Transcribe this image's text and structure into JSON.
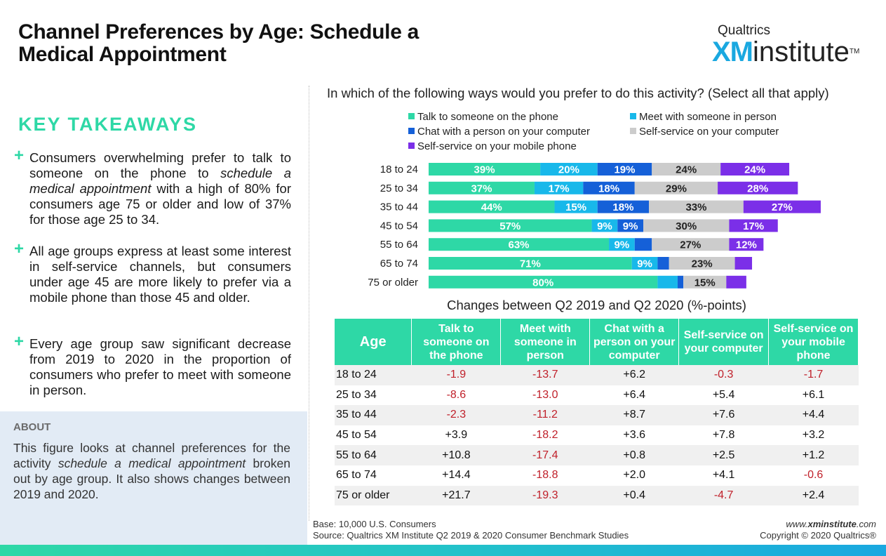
{
  "header": {
    "title": "Channel Preferences by Age: Schedule a Medical Appointment",
    "logo_top": "Qualtrics",
    "logo_xm": "XM",
    "logo_rest": "institute",
    "logo_tm": "TM"
  },
  "key_takeaways": {
    "title": "KEY TAKEAWAYS",
    "items": [
      {
        "before": "Consumers overwhelming prefer to talk to someone on the phone to ",
        "em": "schedule a medical appointment",
        "after": "  with a high of 80% for consumers age 75 or older and low of 37% for those age 25 to 34."
      },
      {
        "before": "All age groups express at least some interest in self-service channels, but consumers under age 45 are more likely to prefer via a mobile phone than those 45 and older.",
        "em": "",
        "after": ""
      },
      {
        "before": "Every age group saw significant decrease from 2019 to 2020 in the proportion of consumers who prefer to meet with someone in person.",
        "em": "",
        "after": ""
      }
    ]
  },
  "about": {
    "label": "ABOUT",
    "before": "This figure looks at channel preferences for the activity ",
    "em": "schedule a medical appointment",
    "after": " broken out by age group. It also shows changes between 2019 and 2020."
  },
  "chart_data": {
    "type": "bar",
    "orientation": "horizontal",
    "stacked": true,
    "title": "In which of the following ways would you prefer to do this activity? (Select all that apply)",
    "categories": [
      "18 to 24",
      "25 to 34",
      "35 to 44",
      "45 to 54",
      "55 to 64",
      "65 to 74",
      "75 or older"
    ],
    "series": [
      {
        "name": "Talk to someone on the phone",
        "color": "#2ed8a6",
        "values": [
          39,
          37,
          44,
          57,
          63,
          71,
          80
        ],
        "labels": [
          "39%",
          "37%",
          "44%",
          "57%",
          "63%",
          "71%",
          "80%"
        ]
      },
      {
        "name": "Meet with someone in person",
        "color": "#18b8ea",
        "values": [
          20,
          17,
          15,
          9,
          9,
          9,
          7
        ],
        "labels": [
          "20%",
          "17%",
          "15%",
          "9%",
          "9%",
          "9%",
          ""
        ]
      },
      {
        "name": "Chat with a person on your computer",
        "color": "#1560d8",
        "values": [
          19,
          18,
          18,
          9,
          6,
          4,
          2
        ],
        "labels": [
          "19%",
          "18%",
          "18%",
          "9%",
          "",
          "",
          ""
        ]
      },
      {
        "name": "Self-service on your computer",
        "color": "#cccccc",
        "values": [
          24,
          29,
          33,
          30,
          27,
          23,
          15
        ],
        "labels": [
          "24%",
          "29%",
          "33%",
          "30%",
          "27%",
          "23%",
          "15%"
        ]
      },
      {
        "name": "Self-service on your mobile phone",
        "color": "#7b2fe8",
        "values": [
          24,
          28,
          27,
          17,
          12,
          6,
          7
        ],
        "labels": [
          "24%",
          "28%",
          "27%",
          "17%",
          "12%",
          "",
          ""
        ]
      }
    ],
    "legend_placement": "top",
    "grid": false
  },
  "legend": [
    {
      "label": "Talk to someone on the phone",
      "color": "#2ed8a6"
    },
    {
      "label": "Meet with someone in person",
      "color": "#18b8ea"
    },
    {
      "label": "Chat with a person on your computer",
      "color": "#1560d8"
    },
    {
      "label": "Self-service on your computer",
      "color": "#cccccc"
    },
    {
      "label": "Self-service on your mobile phone",
      "color": "#7b2fe8"
    }
  ],
  "changes_table": {
    "title": "Changes between Q2 2019 and Q2 2020 (%-points)",
    "headers": [
      "Age",
      "Talk to someone on the phone",
      "Meet with someone in person",
      "Chat with a person on your computer",
      "Self-service on your computer",
      "Self-service on your mobile phone"
    ],
    "rows": [
      [
        "18 to 24",
        "-1.9",
        "-13.7",
        "+6.2",
        "-0.3",
        "-1.7"
      ],
      [
        "25 to 34",
        "-8.6",
        "-13.0",
        "+6.4",
        "+5.4",
        "+6.1"
      ],
      [
        "35 to 44",
        "-2.3",
        "-11.2",
        "+8.7",
        "+7.6",
        "+4.4"
      ],
      [
        "45 to 54",
        "+3.9",
        "-18.2",
        "+3.6",
        "+7.8",
        "+3.2"
      ],
      [
        "55 to 64",
        "+10.8",
        "-17.4",
        "+0.8",
        "+2.5",
        "+1.2"
      ],
      [
        "65 to 74",
        "+14.4",
        "-18.8",
        "+2.0",
        "+4.1",
        "-0.6"
      ],
      [
        "75 or older",
        "+21.7",
        "-19.3",
        "+0.4",
        "-4.7",
        "+2.4"
      ]
    ]
  },
  "footer": {
    "base": "Base: 10,000 U.S. Consumers",
    "source": "Source: Qualtrics XM Institute Q2 2019 & 2020 Consumer Benchmark Studies",
    "url_prefix": "www.",
    "url_bold": "xminstitute",
    "url_suffix": ".com",
    "copyright": "Copyright © 2020 Qualtrics®"
  },
  "colors": {
    "accent_green": "#2ed8a6",
    "negative_red": "#c0202a",
    "about_bg": "#e2ebf5"
  }
}
